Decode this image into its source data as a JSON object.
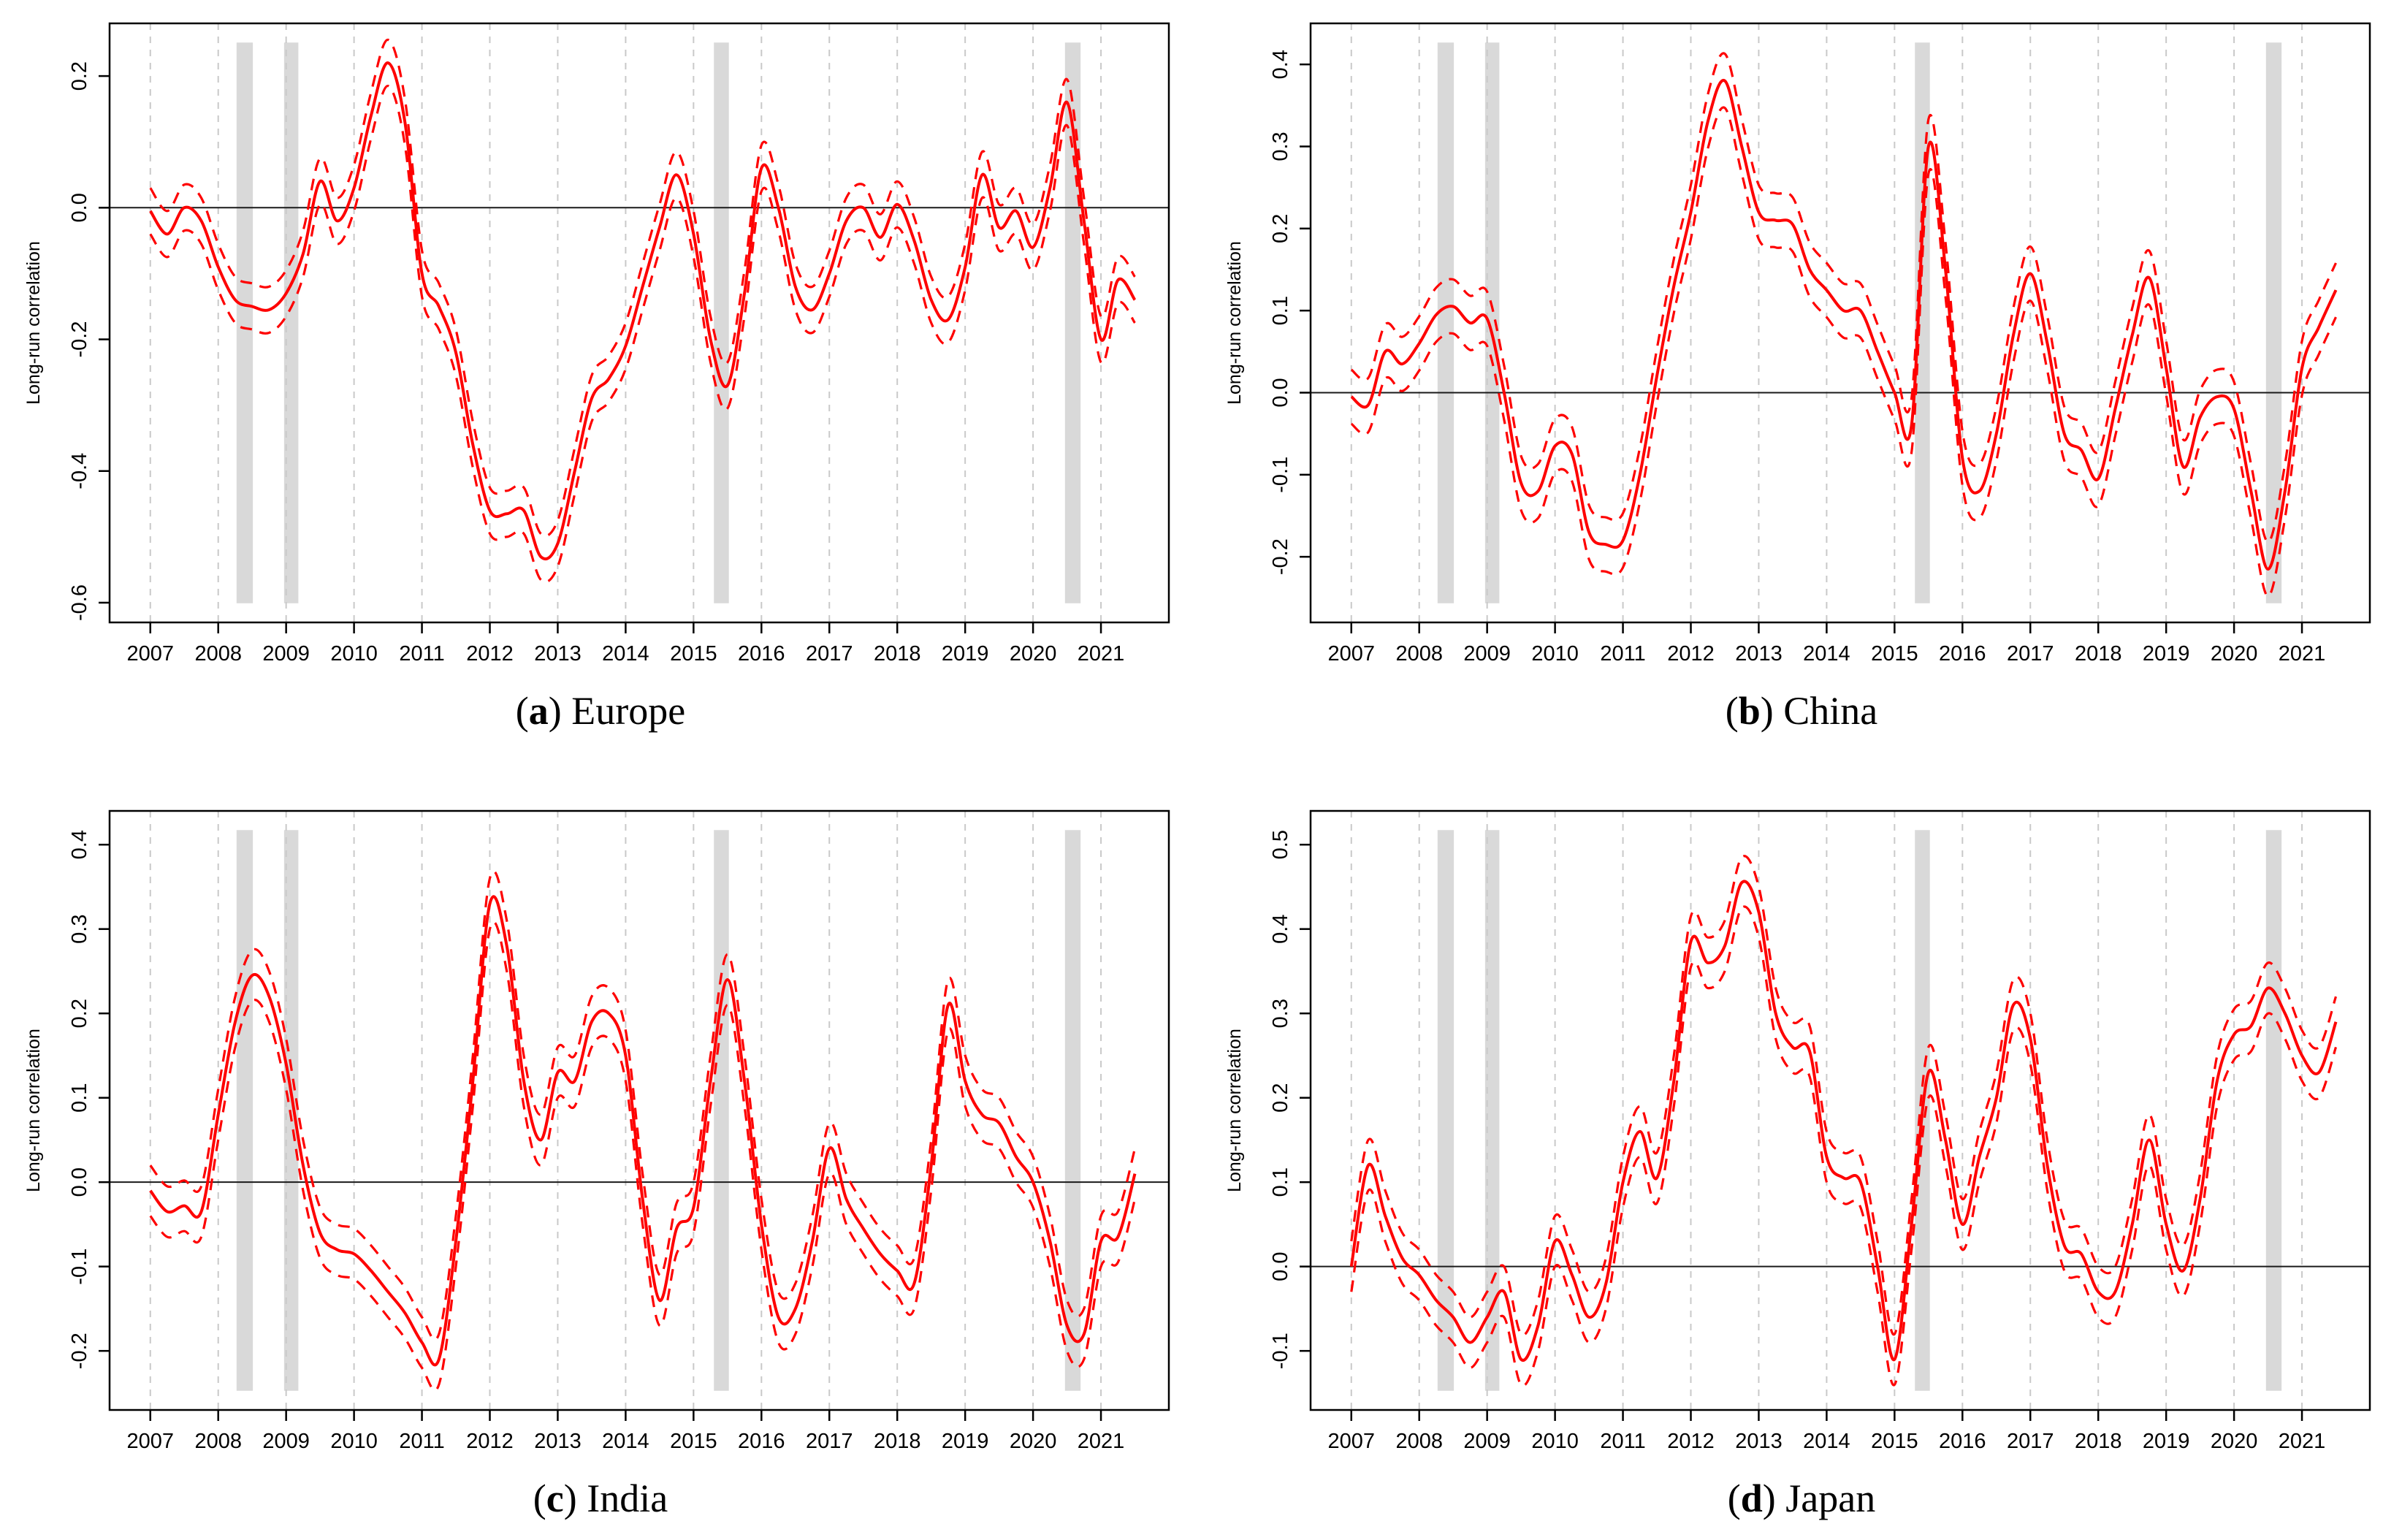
{
  "figure": {
    "background": "#ffffff",
    "colors": {
      "line": "#fe0000",
      "band": "#fe0000",
      "grid": "#c9c9c9",
      "shade": "#d9d9d9",
      "axis": "#000000",
      "zero_line": "#1a1a1a",
      "tick_text": "#000000"
    }
  },
  "chart_data": [
    {
      "type": "line",
      "panel": "a",
      "caption": {
        "open": "(",
        "letter": "a",
        "close": ") ",
        "title": "Europe"
      },
      "title": "",
      "xlabel": "",
      "ylabel": "Long-run correlation",
      "grid": "vertical-dashed-yearly",
      "legend": "none",
      "x_start": 2007.0,
      "x_step": 0.25,
      "xlim": [
        2006.4,
        2022.0
      ],
      "ylim": [
        -0.63,
        0.28
      ],
      "x_ticks": [
        2007,
        2008,
        2009,
        2010,
        2011,
        2012,
        2013,
        2014,
        2015,
        2016,
        2017,
        2018,
        2019,
        2020,
        2021
      ],
      "x_tick_labels": [
        "2007",
        "2008",
        "2009",
        "2010",
        "2011",
        "2012",
        "2013",
        "2014",
        "2015",
        "2016",
        "2017",
        "2018",
        "2019",
        "2020",
        "2021"
      ],
      "y_ticks": [
        0.2,
        0.0,
        -0.2,
        -0.4,
        -0.6
      ],
      "y_tick_labels": [
        "0.2",
        "0.0",
        "-0.2",
        "-0.4",
        "-0.6"
      ],
      "shaded_periods": [
        [
          2008.27,
          2008.51
        ],
        [
          2008.97,
          2009.18
        ],
        [
          2015.3,
          2015.52
        ],
        [
          2020.47,
          2020.7
        ]
      ],
      "series": [
        {
          "name": "long-run correlation estimate",
          "style": "solid",
          "values": [
            -0.005,
            -0.04,
            0.0,
            -0.02,
            -0.09,
            -0.14,
            -0.15,
            -0.155,
            -0.13,
            -0.07,
            0.04,
            -0.02,
            0.03,
            0.14,
            0.22,
            0.13,
            -0.1,
            -0.15,
            -0.22,
            -0.36,
            -0.46,
            -0.465,
            -0.46,
            -0.53,
            -0.51,
            -0.4,
            -0.29,
            -0.26,
            -0.21,
            -0.12,
            -0.03,
            0.05,
            -0.04,
            -0.2,
            -0.27,
            -0.13,
            0.06,
            0.0,
            -0.12,
            -0.155,
            -0.1,
            -0.02,
            0.0,
            -0.045,
            0.005,
            -0.05,
            -0.14,
            -0.17,
            -0.09,
            0.05,
            -0.03,
            -0.005,
            -0.06,
            0.03,
            0.16,
            -0.02,
            -0.2,
            -0.11,
            -0.14
          ]
        },
        {
          "name": "confidence band (dashed)",
          "style": "dashed",
          "halfwidth": 0.035
        }
      ]
    },
    {
      "type": "line",
      "panel": "b",
      "caption": {
        "open": "(",
        "letter": "b",
        "close": ") ",
        "title": "China"
      },
      "title": "",
      "xlabel": "",
      "ylabel": "Long-run correlation",
      "grid": "vertical-dashed-yearly",
      "legend": "none",
      "x_start": 2007.0,
      "x_step": 0.25,
      "xlim": [
        2006.4,
        2022.0
      ],
      "ylim": [
        -0.28,
        0.45
      ],
      "x_ticks": [
        2007,
        2008,
        2009,
        2010,
        2011,
        2012,
        2013,
        2014,
        2015,
        2016,
        2017,
        2018,
        2019,
        2020,
        2021
      ],
      "x_tick_labels": [
        "2007",
        "2008",
        "2009",
        "2010",
        "2011",
        "2012",
        "2013",
        "2014",
        "2015",
        "2016",
        "2017",
        "2018",
        "2019",
        "2020",
        "2021"
      ],
      "y_ticks": [
        0.4,
        0.3,
        0.2,
        0.1,
        0.0,
        -0.1,
        -0.2
      ],
      "y_tick_labels": [
        "0.4",
        "0.3",
        "0.2",
        "0.1",
        "0.0",
        "-0.1",
        "-0.2"
      ],
      "shaded_periods": [
        [
          2008.27,
          2008.51
        ],
        [
          2008.97,
          2009.18
        ],
        [
          2015.3,
          2015.52
        ],
        [
          2020.47,
          2020.7
        ]
      ],
      "series": [
        {
          "name": "long-run correlation estimate",
          "style": "solid",
          "values": [
            -0.005,
            -0.015,
            0.05,
            0.035,
            0.06,
            0.095,
            0.105,
            0.085,
            0.09,
            0.0,
            -0.11,
            -0.12,
            -0.065,
            -0.075,
            -0.17,
            -0.185,
            -0.18,
            -0.1,
            0.02,
            0.13,
            0.22,
            0.33,
            0.38,
            0.3,
            0.22,
            0.21,
            0.205,
            0.15,
            0.125,
            0.1,
            0.1,
            0.05,
            0.0,
            -0.04,
            0.3,
            0.15,
            -0.08,
            -0.12,
            -0.05,
            0.07,
            0.145,
            0.06,
            -0.05,
            -0.07,
            -0.105,
            -0.02,
            0.07,
            0.14,
            0.03,
            -0.09,
            -0.03,
            -0.005,
            -0.02,
            -0.12,
            -0.215,
            -0.12,
            0.03,
            0.08,
            0.125
          ]
        },
        {
          "name": "confidence band (dashed)",
          "style": "dashed",
          "halfwidth": 0.033
        }
      ]
    },
    {
      "type": "line",
      "panel": "c",
      "caption": {
        "open": "(",
        "letter": "c",
        "close": ") ",
        "title": "India"
      },
      "title": "",
      "xlabel": "",
      "ylabel": "Long-run correlation",
      "grid": "vertical-dashed-yearly",
      "legend": "none",
      "x_start": 2007.0,
      "x_step": 0.25,
      "xlim": [
        2006.4,
        2022.0
      ],
      "ylim": [
        -0.27,
        0.44
      ],
      "x_ticks": [
        2007,
        2008,
        2009,
        2010,
        2011,
        2012,
        2013,
        2014,
        2015,
        2016,
        2017,
        2018,
        2019,
        2020,
        2021
      ],
      "x_tick_labels": [
        "2007",
        "2008",
        "2009",
        "2010",
        "2011",
        "2012",
        "2013",
        "2014",
        "2015",
        "2016",
        "2017",
        "2018",
        "2019",
        "2020",
        "2021"
      ],
      "y_ticks": [
        0.4,
        0.3,
        0.2,
        0.1,
        0.0,
        -0.1,
        -0.2
      ],
      "y_tick_labels": [
        "0.4",
        "0.3",
        "0.2",
        "0.1",
        "0.0",
        "-0.1",
        "-0.2"
      ],
      "shaded_periods": [
        [
          2008.27,
          2008.51
        ],
        [
          2008.97,
          2009.18
        ],
        [
          2015.3,
          2015.52
        ],
        [
          2020.47,
          2020.7
        ]
      ],
      "series": [
        {
          "name": "long-run correlation estimate",
          "style": "solid",
          "values": [
            -0.01,
            -0.035,
            -0.028,
            -0.035,
            0.08,
            0.19,
            0.245,
            0.22,
            0.14,
            0.02,
            -0.06,
            -0.08,
            -0.085,
            -0.105,
            -0.13,
            -0.155,
            -0.19,
            -0.21,
            -0.07,
            0.12,
            0.33,
            0.28,
            0.12,
            0.05,
            0.13,
            0.12,
            0.19,
            0.2,
            0.15,
            -0.02,
            -0.14,
            -0.055,
            -0.03,
            0.12,
            0.24,
            0.12,
            -0.05,
            -0.16,
            -0.15,
            -0.07,
            0.04,
            -0.02,
            -0.055,
            -0.085,
            -0.105,
            -0.12,
            0.02,
            0.21,
            0.12,
            0.08,
            0.07,
            0.03,
            0.0,
            -0.07,
            -0.17,
            -0.18,
            -0.07,
            -0.065,
            0.01
          ]
        },
        {
          "name": "confidence band (dashed)",
          "style": "dashed",
          "halfwidth": 0.03
        }
      ]
    },
    {
      "type": "line",
      "panel": "d",
      "caption": {
        "open": "(",
        "letter": "d",
        "close": ") ",
        "title": "Japan"
      },
      "title": "",
      "xlabel": "",
      "ylabel": "Long-run correlation",
      "grid": "vertical-dashed-yearly",
      "legend": "none",
      "x_start": 2007.0,
      "x_step": 0.25,
      "xlim": [
        2006.4,
        2022.0
      ],
      "ylim": [
        -0.17,
        0.54
      ],
      "x_ticks": [
        2007,
        2008,
        2009,
        2010,
        2011,
        2012,
        2013,
        2014,
        2015,
        2016,
        2017,
        2018,
        2019,
        2020,
        2021
      ],
      "x_tick_labels": [
        "2007",
        "2008",
        "2009",
        "2010",
        "2011",
        "2012",
        "2013",
        "2014",
        "2015",
        "2016",
        "2017",
        "2018",
        "2019",
        "2020",
        "2021"
      ],
      "y_ticks": [
        0.5,
        0.4,
        0.3,
        0.2,
        0.1,
        0.0,
        -0.1
      ],
      "y_tick_labels": [
        "0.5",
        "0.4",
        "0.3",
        "0.2",
        "0.1",
        "0.0",
        "-0.1"
      ],
      "shaded_periods": [
        [
          2008.27,
          2008.51
        ],
        [
          2008.97,
          2009.18
        ],
        [
          2015.3,
          2015.52
        ],
        [
          2020.47,
          2020.7
        ]
      ],
      "series": [
        {
          "name": "long-run correlation estimate",
          "style": "solid",
          "values": [
            0.0,
            0.12,
            0.06,
            0.01,
            -0.01,
            -0.04,
            -0.06,
            -0.09,
            -0.06,
            -0.03,
            -0.11,
            -0.07,
            0.03,
            -0.01,
            -0.06,
            -0.02,
            0.1,
            0.16,
            0.105,
            0.22,
            0.385,
            0.36,
            0.38,
            0.455,
            0.42,
            0.3,
            0.26,
            0.255,
            0.13,
            0.105,
            0.1,
            0.0,
            -0.11,
            0.05,
            0.23,
            0.15,
            0.05,
            0.13,
            0.2,
            0.31,
            0.27,
            0.12,
            0.025,
            0.015,
            -0.03,
            -0.03,
            0.05,
            0.15,
            0.05,
            -0.005,
            0.08,
            0.22,
            0.275,
            0.285,
            0.33,
            0.3,
            0.25,
            0.23,
            0.29
          ]
        },
        {
          "name": "confidence band (dashed)",
          "style": "dashed",
          "halfwidth": 0.03
        }
      ]
    }
  ]
}
